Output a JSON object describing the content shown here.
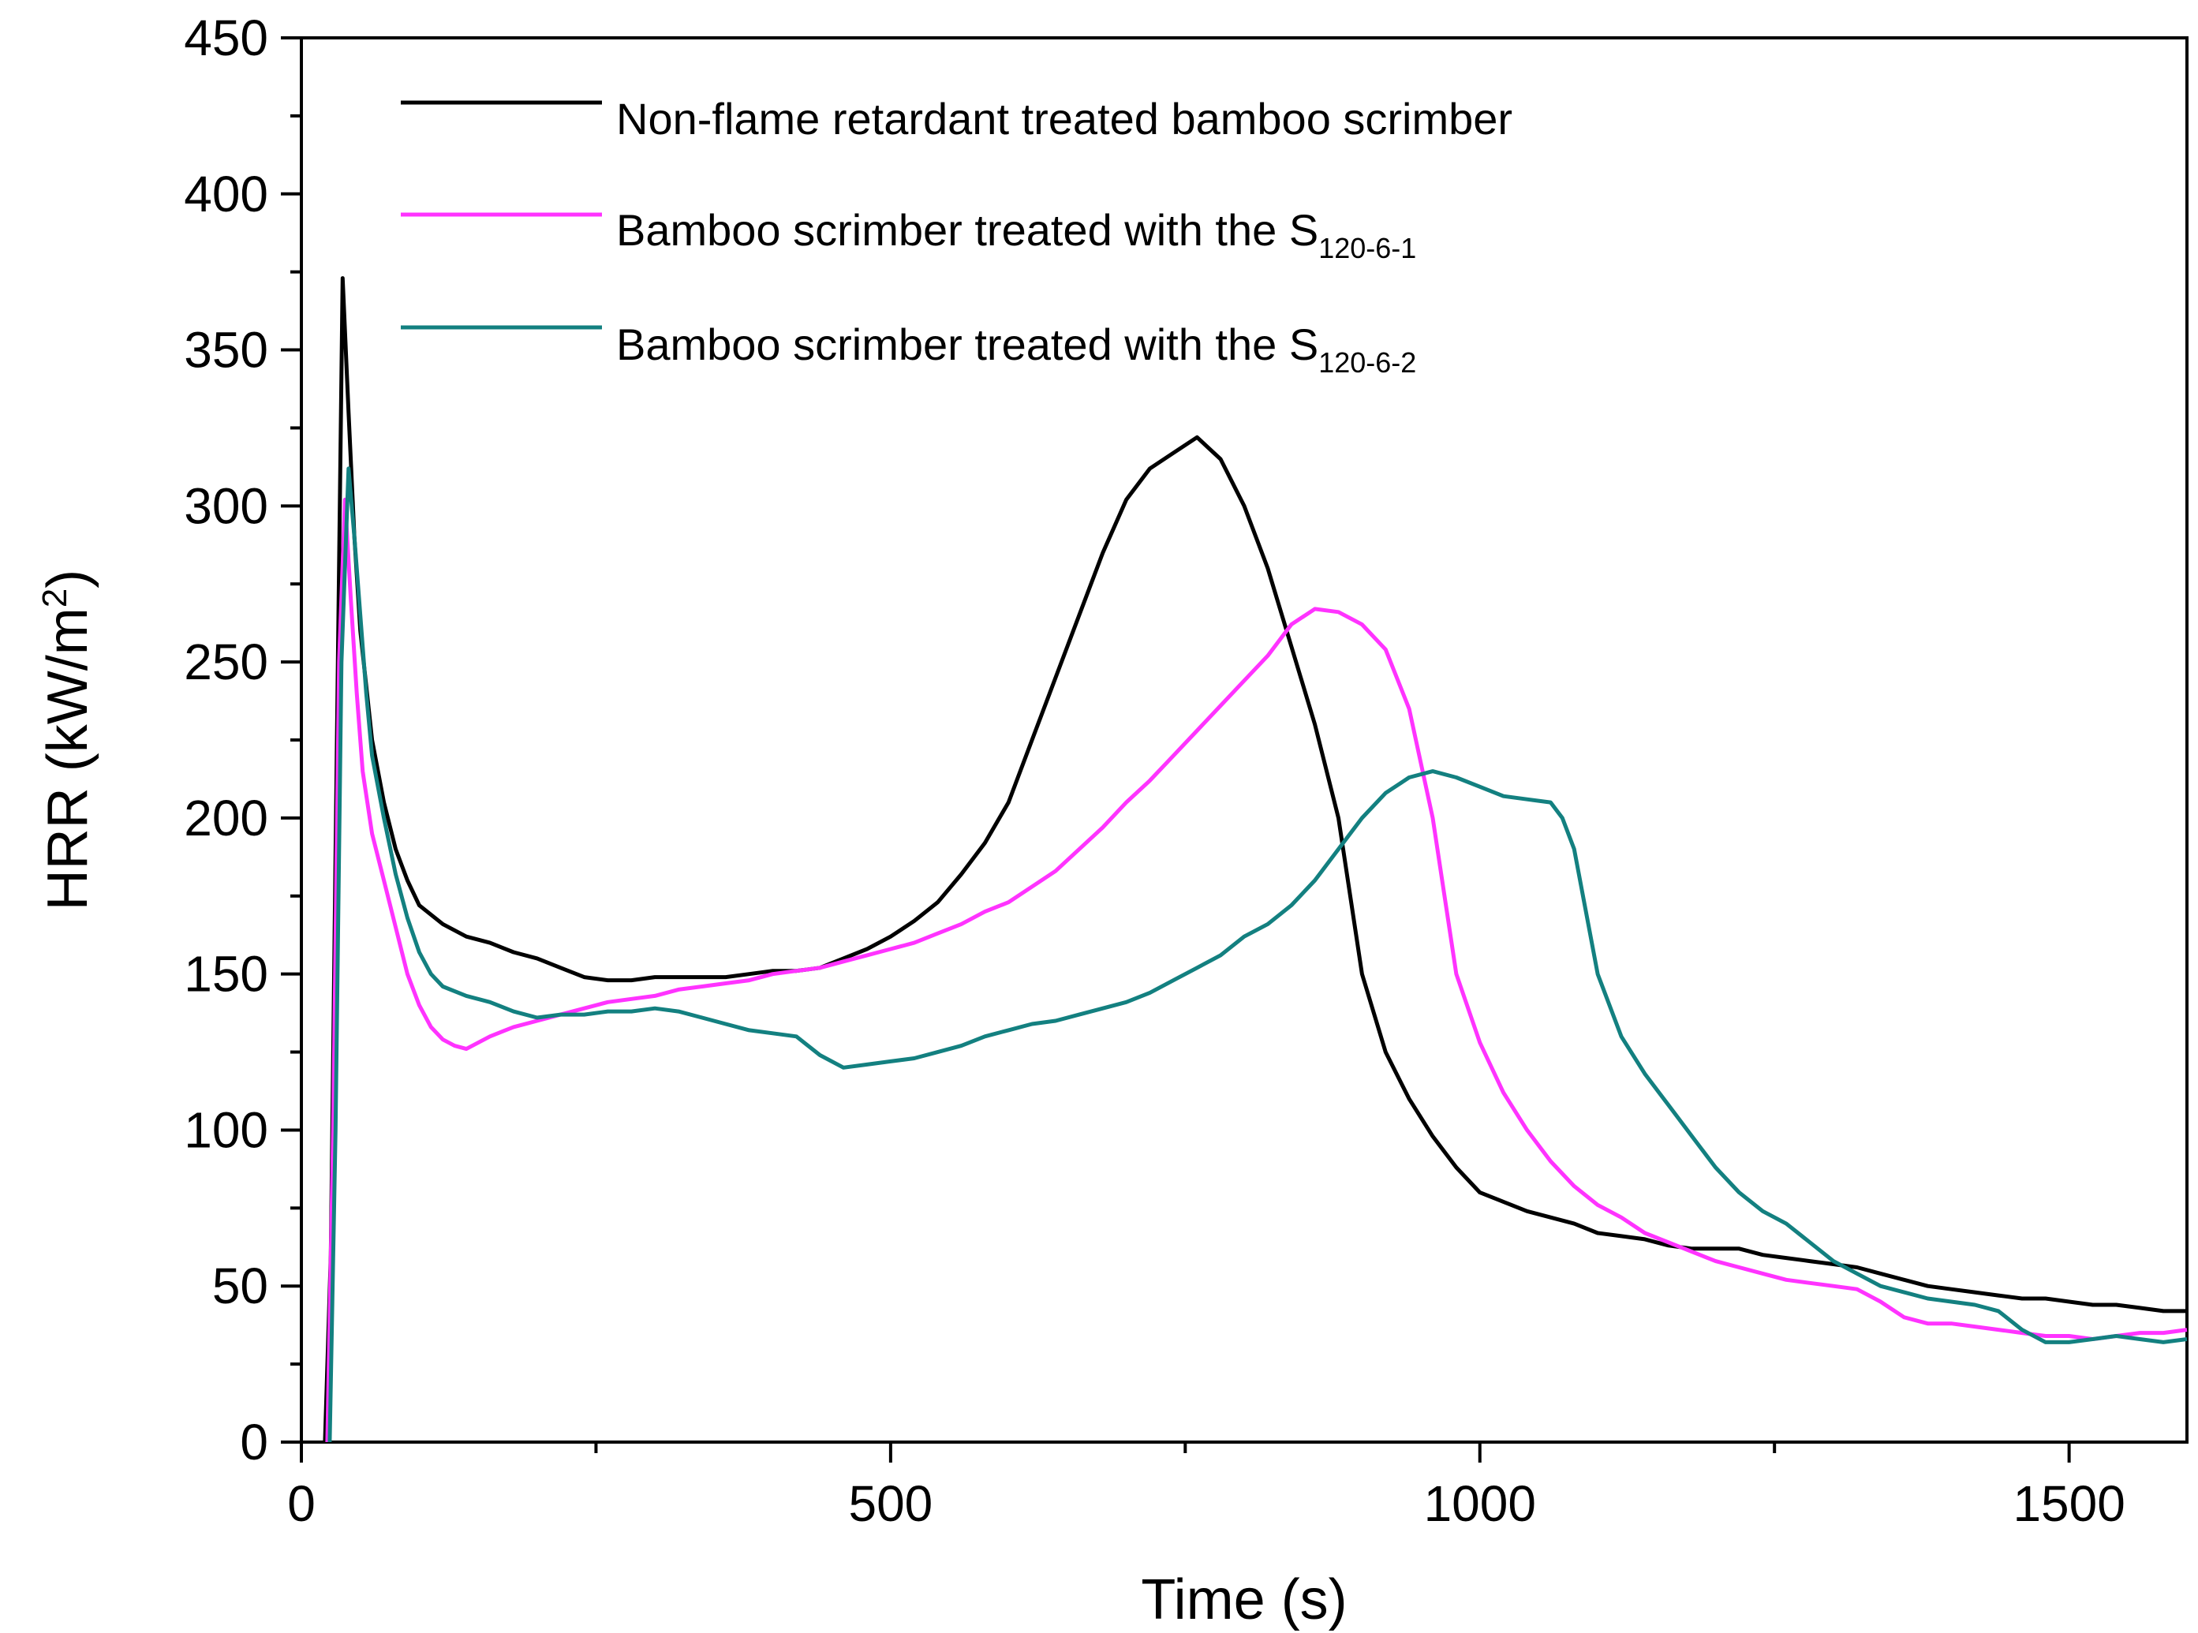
{
  "chart_data": {
    "type": "line",
    "title": "",
    "xlabel": "Time (s)",
    "ylabel": {
      "base": "HRR (kW/m",
      "sup": "2",
      "close": ")"
    },
    "xlim": [
      0,
      1600
    ],
    "ylim": [
      0,
      450
    ],
    "x_ticks": [
      0,
      500,
      1000,
      1500
    ],
    "x_tick_labels": [
      "0",
      "500",
      "1000",
      "1500"
    ],
    "y_ticks": [
      0,
      50,
      100,
      150,
      200,
      250,
      300,
      350,
      400,
      450
    ],
    "y_tick_labels": [
      "0",
      "50",
      "100",
      "150",
      "200",
      "250",
      "300",
      "350",
      "400",
      "450"
    ],
    "legend_position": "top-left",
    "series": [
      {
        "name": "Non-flame retardant treated bamboo scrimber",
        "legend_label": "Non-flame retardant treated bamboo scrimber",
        "legend_sub": "",
        "color": "#000000",
        "points": [
          [
            20,
            0
          ],
          [
            25,
            60
          ],
          [
            30,
            220
          ],
          [
            35,
            373
          ],
          [
            40,
            330
          ],
          [
            45,
            290
          ],
          [
            50,
            260
          ],
          [
            60,
            225
          ],
          [
            70,
            205
          ],
          [
            80,
            190
          ],
          [
            90,
            180
          ],
          [
            100,
            172
          ],
          [
            120,
            166
          ],
          [
            140,
            162
          ],
          [
            160,
            160
          ],
          [
            180,
            157
          ],
          [
            200,
            155
          ],
          [
            220,
            152
          ],
          [
            240,
            149
          ],
          [
            260,
            148
          ],
          [
            280,
            148
          ],
          [
            300,
            149
          ],
          [
            320,
            149
          ],
          [
            340,
            149
          ],
          [
            360,
            149
          ],
          [
            380,
            150
          ],
          [
            400,
            151
          ],
          [
            420,
            151
          ],
          [
            440,
            152
          ],
          [
            460,
            155
          ],
          [
            480,
            158
          ],
          [
            500,
            162
          ],
          [
            520,
            167
          ],
          [
            540,
            173
          ],
          [
            560,
            182
          ],
          [
            580,
            192
          ],
          [
            600,
            205
          ],
          [
            620,
            225
          ],
          [
            640,
            245
          ],
          [
            660,
            265
          ],
          [
            680,
            285
          ],
          [
            700,
            302
          ],
          [
            720,
            312
          ],
          [
            740,
            317
          ],
          [
            760,
            322
          ],
          [
            780,
            315
          ],
          [
            800,
            300
          ],
          [
            820,
            280
          ],
          [
            840,
            255
          ],
          [
            860,
            230
          ],
          [
            880,
            200
          ],
          [
            900,
            150
          ],
          [
            920,
            125
          ],
          [
            940,
            110
          ],
          [
            960,
            98
          ],
          [
            980,
            88
          ],
          [
            1000,
            80
          ],
          [
            1020,
            77
          ],
          [
            1040,
            74
          ],
          [
            1060,
            72
          ],
          [
            1080,
            70
          ],
          [
            1100,
            67
          ],
          [
            1120,
            66
          ],
          [
            1140,
            65
          ],
          [
            1160,
            63
          ],
          [
            1180,
            62
          ],
          [
            1200,
            62
          ],
          [
            1220,
            62
          ],
          [
            1240,
            60
          ],
          [
            1260,
            59
          ],
          [
            1280,
            58
          ],
          [
            1300,
            57
          ],
          [
            1320,
            56
          ],
          [
            1340,
            54
          ],
          [
            1360,
            52
          ],
          [
            1380,
            50
          ],
          [
            1400,
            49
          ],
          [
            1420,
            48
          ],
          [
            1440,
            47
          ],
          [
            1460,
            46
          ],
          [
            1480,
            46
          ],
          [
            1500,
            45
          ],
          [
            1520,
            44
          ],
          [
            1540,
            44
          ],
          [
            1560,
            43
          ],
          [
            1580,
            42
          ],
          [
            1600,
            42
          ]
        ]
      },
      {
        "name": "Bamboo scrimber treated with the S120-6-1",
        "legend_label": "Bamboo scrimber treated with the S",
        "legend_sub": "120-6-1",
        "color": "#ff33ff",
        "points": [
          [
            22,
            0
          ],
          [
            27,
            100
          ],
          [
            32,
            250
          ],
          [
            37,
            302
          ],
          [
            42,
            270
          ],
          [
            47,
            240
          ],
          [
            52,
            215
          ],
          [
            60,
            195
          ],
          [
            70,
            180
          ],
          [
            80,
            165
          ],
          [
            90,
            150
          ],
          [
            100,
            140
          ],
          [
            110,
            133
          ],
          [
            120,
            129
          ],
          [
            130,
            127
          ],
          [
            140,
            126
          ],
          [
            160,
            130
          ],
          [
            180,
            133
          ],
          [
            200,
            135
          ],
          [
            220,
            137
          ],
          [
            240,
            139
          ],
          [
            260,
            141
          ],
          [
            280,
            142
          ],
          [
            300,
            143
          ],
          [
            320,
            145
          ],
          [
            340,
            146
          ],
          [
            360,
            147
          ],
          [
            380,
            148
          ],
          [
            400,
            150
          ],
          [
            420,
            151
          ],
          [
            440,
            152
          ],
          [
            460,
            154
          ],
          [
            480,
            156
          ],
          [
            500,
            158
          ],
          [
            520,
            160
          ],
          [
            540,
            163
          ],
          [
            560,
            166
          ],
          [
            580,
            170
          ],
          [
            600,
            173
          ],
          [
            620,
            178
          ],
          [
            640,
            183
          ],
          [
            660,
            190
          ],
          [
            680,
            197
          ],
          [
            700,
            205
          ],
          [
            720,
            212
          ],
          [
            740,
            220
          ],
          [
            760,
            228
          ],
          [
            780,
            236
          ],
          [
            800,
            244
          ],
          [
            820,
            252
          ],
          [
            840,
            262
          ],
          [
            860,
            267
          ],
          [
            880,
            266
          ],
          [
            900,
            262
          ],
          [
            920,
            254
          ],
          [
            940,
            235
          ],
          [
            960,
            200
          ],
          [
            980,
            150
          ],
          [
            1000,
            128
          ],
          [
            1020,
            112
          ],
          [
            1040,
            100
          ],
          [
            1060,
            90
          ],
          [
            1080,
            82
          ],
          [
            1100,
            76
          ],
          [
            1120,
            72
          ],
          [
            1140,
            67
          ],
          [
            1160,
            64
          ],
          [
            1180,
            61
          ],
          [
            1200,
            58
          ],
          [
            1220,
            56
          ],
          [
            1240,
            54
          ],
          [
            1260,
            52
          ],
          [
            1280,
            51
          ],
          [
            1300,
            50
          ],
          [
            1320,
            49
          ],
          [
            1340,
            45
          ],
          [
            1360,
            40
          ],
          [
            1380,
            38
          ],
          [
            1400,
            38
          ],
          [
            1420,
            37
          ],
          [
            1440,
            36
          ],
          [
            1460,
            35
          ],
          [
            1480,
            34
          ],
          [
            1500,
            34
          ],
          [
            1520,
            33
          ],
          [
            1540,
            34
          ],
          [
            1560,
            35
          ],
          [
            1580,
            35
          ],
          [
            1600,
            36
          ]
        ]
      },
      {
        "name": "Bamboo scrimber treated with the S120-6-2",
        "legend_label": "Bamboo scrimber treated with the S",
        "legend_sub": "120-6-2",
        "color": "#138080",
        "points": [
          [
            24,
            0
          ],
          [
            29,
            100
          ],
          [
            34,
            250
          ],
          [
            40,
            312
          ],
          [
            45,
            290
          ],
          [
            50,
            265
          ],
          [
            55,
            240
          ],
          [
            60,
            220
          ],
          [
            70,
            200
          ],
          [
            80,
            182
          ],
          [
            90,
            168
          ],
          [
            100,
            157
          ],
          [
            110,
            150
          ],
          [
            120,
            146
          ],
          [
            140,
            143
          ],
          [
            160,
            141
          ],
          [
            180,
            138
          ],
          [
            200,
            136
          ],
          [
            220,
            137
          ],
          [
            240,
            137
          ],
          [
            260,
            138
          ],
          [
            280,
            138
          ],
          [
            300,
            139
          ],
          [
            320,
            138
          ],
          [
            340,
            136
          ],
          [
            360,
            134
          ],
          [
            380,
            132
          ],
          [
            400,
            131
          ],
          [
            420,
            130
          ],
          [
            440,
            124
          ],
          [
            460,
            120
          ],
          [
            480,
            121
          ],
          [
            500,
            122
          ],
          [
            520,
            123
          ],
          [
            540,
            125
          ],
          [
            560,
            127
          ],
          [
            580,
            130
          ],
          [
            600,
            132
          ],
          [
            620,
            134
          ],
          [
            640,
            135
          ],
          [
            660,
            137
          ],
          [
            680,
            139
          ],
          [
            700,
            141
          ],
          [
            720,
            144
          ],
          [
            740,
            148
          ],
          [
            760,
            152
          ],
          [
            780,
            156
          ],
          [
            800,
            162
          ],
          [
            820,
            166
          ],
          [
            840,
            172
          ],
          [
            860,
            180
          ],
          [
            880,
            190
          ],
          [
            900,
            200
          ],
          [
            920,
            208
          ],
          [
            940,
            213
          ],
          [
            960,
            215
          ],
          [
            980,
            213
          ],
          [
            1000,
            210
          ],
          [
            1020,
            207
          ],
          [
            1040,
            206
          ],
          [
            1060,
            205
          ],
          [
            1070,
            200
          ],
          [
            1080,
            190
          ],
          [
            1090,
            170
          ],
          [
            1100,
            150
          ],
          [
            1120,
            130
          ],
          [
            1140,
            118
          ],
          [
            1160,
            108
          ],
          [
            1180,
            98
          ],
          [
            1200,
            88
          ],
          [
            1220,
            80
          ],
          [
            1240,
            74
          ],
          [
            1260,
            70
          ],
          [
            1280,
            64
          ],
          [
            1300,
            58
          ],
          [
            1320,
            54
          ],
          [
            1340,
            50
          ],
          [
            1360,
            48
          ],
          [
            1380,
            46
          ],
          [
            1400,
            45
          ],
          [
            1420,
            44
          ],
          [
            1440,
            42
          ],
          [
            1460,
            36
          ],
          [
            1480,
            32
          ],
          [
            1500,
            32
          ],
          [
            1520,
            33
          ],
          [
            1540,
            34
          ],
          [
            1560,
            33
          ],
          [
            1580,
            32
          ],
          [
            1600,
            33
          ]
        ]
      }
    ]
  }
}
